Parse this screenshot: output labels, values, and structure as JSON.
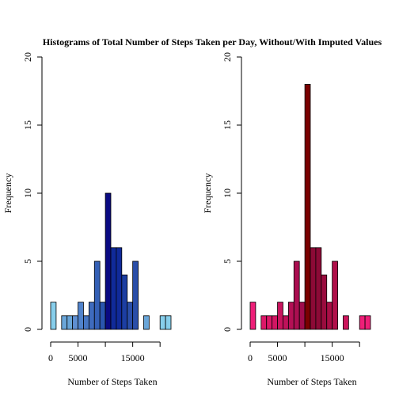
{
  "title": "Histograms of Total Number of Steps Taken per Day, Without/With Imputed Values",
  "chart_data": [
    {
      "type": "bar",
      "subtype": "histogram",
      "xlabel": "Number of Steps Taken",
      "ylabel": "Frequency",
      "xlim": [
        0,
        22000
      ],
      "ylim": [
        0,
        20
      ],
      "xticks": [
        0,
        5000,
        15000
      ],
      "yticks": [
        0,
        5,
        10,
        15,
        20
      ],
      "bin_width": 1000,
      "bin_starts": [
        0,
        1000,
        2000,
        3000,
        4000,
        5000,
        6000,
        7000,
        8000,
        9000,
        10000,
        11000,
        12000,
        13000,
        14000,
        15000,
        16000,
        17000,
        18000,
        19000,
        20000,
        21000
      ],
      "values": [
        2,
        0,
        1,
        1,
        1,
        2,
        1,
        2,
        5,
        2,
        10,
        6,
        6,
        4,
        2,
        5,
        0,
        1,
        0,
        0,
        1,
        1
      ],
      "colors": [
        "#87ceeb",
        "#82c1e7",
        "#6aa6d9",
        "#6aa6d9",
        "#5f8fd2",
        "#5083cc",
        "#4777c4",
        "#3e6bbd",
        "#3460b6",
        "#2a55ae",
        "#0a0a82",
        "#102a99",
        "#102a99",
        "#1c3ea2",
        "#2a4ea8",
        "#2a4ea8",
        "#3c62b4",
        "#6aa6d9",
        "#7db6e0",
        "#7db6e0",
        "#87ceeb",
        "#87ceeb"
      ]
    },
    {
      "type": "bar",
      "subtype": "histogram",
      "xlabel": "Number of Steps Taken",
      "ylabel": "Frequency",
      "xlim": [
        0,
        22000
      ],
      "ylim": [
        0,
        20
      ],
      "xticks": [
        0,
        5000,
        15000
      ],
      "yticks": [
        0,
        5,
        10,
        15,
        20
      ],
      "bin_width": 1000,
      "bin_starts": [
        0,
        1000,
        2000,
        3000,
        4000,
        5000,
        6000,
        7000,
        8000,
        9000,
        10000,
        11000,
        12000,
        13000,
        14000,
        15000,
        16000,
        17000,
        18000,
        19000,
        20000,
        21000
      ],
      "values": [
        2,
        0,
        1,
        1,
        1,
        2,
        1,
        2,
        5,
        2,
        18,
        6,
        6,
        4,
        2,
        5,
        0,
        1,
        0,
        0,
        1,
        1
      ],
      "colors": [
        "#ee1f78",
        "#e81c70",
        "#dc1868",
        "#dc1868",
        "#d21663",
        "#c8145e",
        "#be125a",
        "#b41055",
        "#aa0e50",
        "#a00c4b",
        "#7a0000",
        "#8c0a36",
        "#8c0a36",
        "#9a0c3e",
        "#a80e45",
        "#b0104a",
        "#c01456",
        "#cc165c",
        "#dc1868",
        "#dc1868",
        "#ee1f78",
        "#ee1f78"
      ]
    }
  ]
}
